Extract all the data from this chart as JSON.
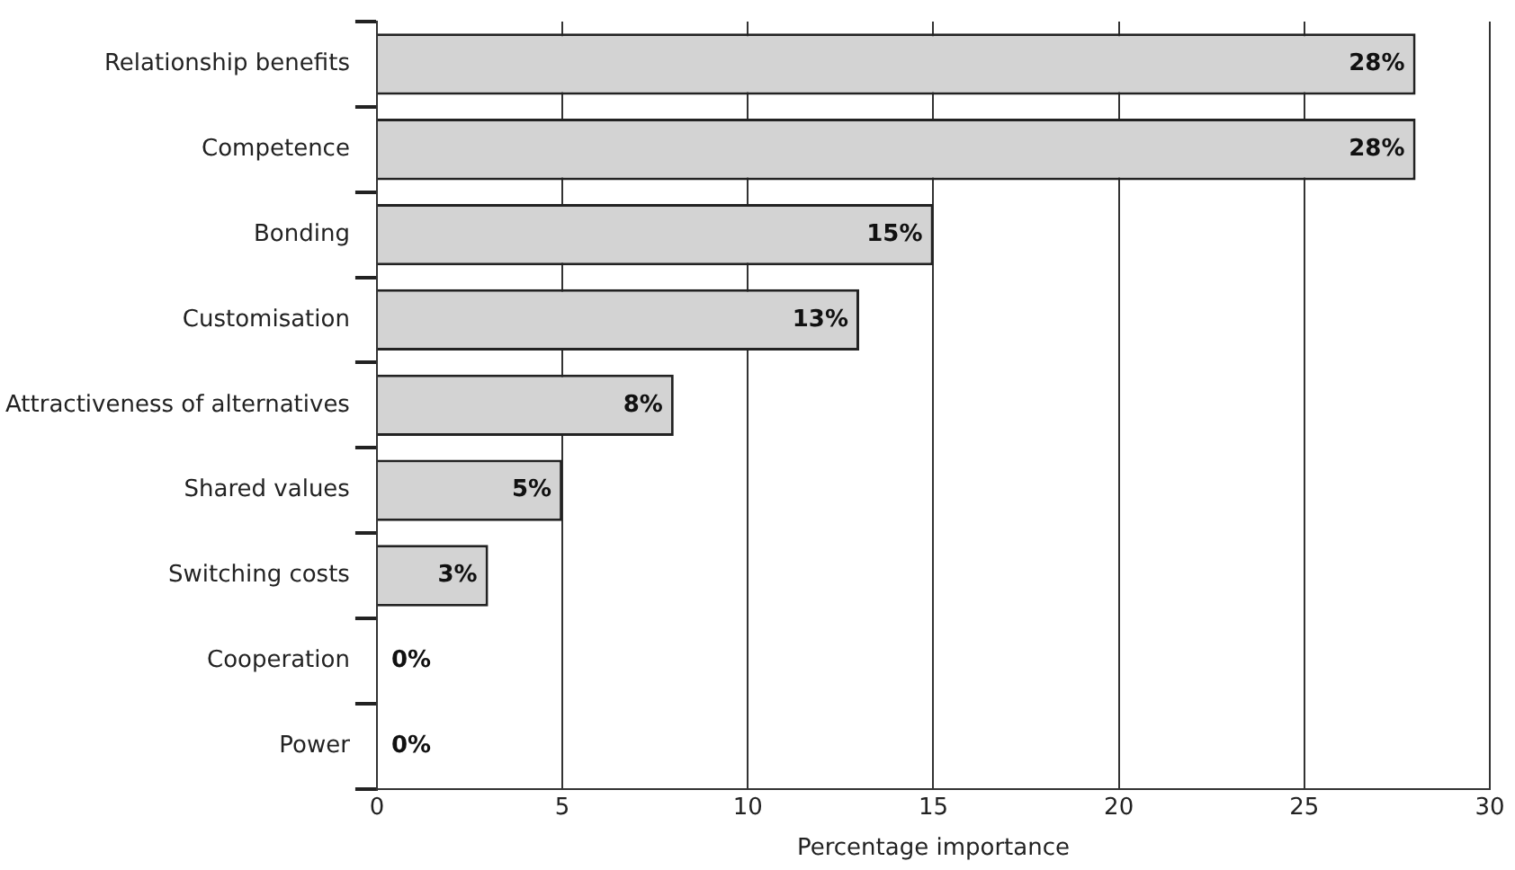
{
  "chart_data": {
    "type": "bar",
    "orientation": "horizontal",
    "xlabel": "Percentage importance",
    "categories": [
      "Relationship benefits",
      "Competence",
      "Bonding",
      "Customisation",
      "Attractiveness of alternatives",
      "Shared values",
      "Switching costs",
      "Cooperation",
      "Power"
    ],
    "values": [
      28,
      28,
      15,
      13,
      8,
      5,
      3,
      0,
      0
    ],
    "value_labels": [
      "28%",
      "28%",
      "15%",
      "13%",
      "8%",
      "5%",
      "3%",
      "0%",
      "0%"
    ],
    "color": "#d3d3d3",
    "xlim": [
      0,
      30
    ],
    "xticks": [
      0,
      5,
      10,
      15,
      20,
      25,
      30
    ],
    "grid": "x",
    "legend": false
  }
}
